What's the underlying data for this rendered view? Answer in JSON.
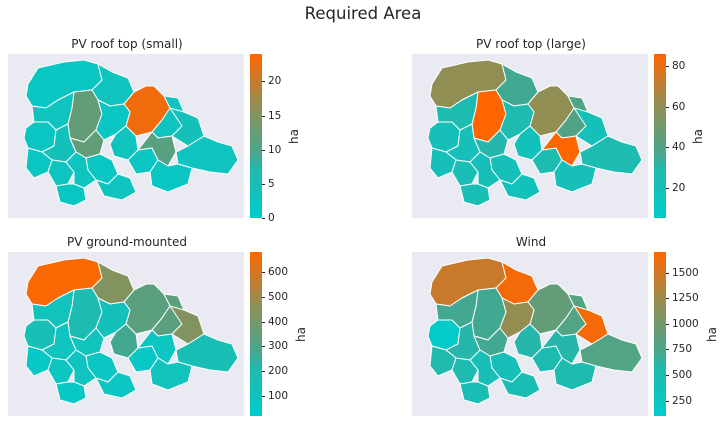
{
  "title": "Required Area",
  "colors": {
    "low": "#00cccc",
    "high": "#ff6600",
    "background": "#eaeaf2",
    "border": "#ffffff"
  },
  "panels": [
    {
      "title": "PV roof top (small)",
      "colorbar": {
        "label": "ha",
        "min": 0,
        "max": 24,
        "ticks": [
          "0",
          "5",
          "10",
          "15",
          "20"
        ],
        "tick_values": [
          0,
          5,
          10,
          15,
          20
        ]
      },
      "region_values": [
        2,
        3,
        23,
        12,
        2,
        3,
        4,
        2,
        3,
        12,
        2,
        3,
        4,
        3,
        2,
        3,
        2,
        2,
        3,
        11,
        3,
        2
      ]
    },
    {
      "title": "PV roof top (large)",
      "colorbar": {
        "label": "ha",
        "min": 5,
        "max": 86,
        "ticks": [
          "20",
          "40",
          "60",
          "80"
        ],
        "tick_values": [
          20,
          40,
          60,
          80
        ]
      },
      "region_values": [
        60,
        35,
        60,
        86,
        20,
        25,
        20,
        20,
        22,
        30,
        25,
        40,
        20,
        18,
        20,
        20,
        22,
        25,
        18,
        86,
        25,
        20
      ]
    },
    {
      "title": "PV ground-mounted",
      "colorbar": {
        "label": "ha",
        "min": 20,
        "max": 680,
        "ticks": [
          "100",
          "200",
          "300",
          "400",
          "500",
          "600"
        ],
        "tick_values": [
          100,
          200,
          300,
          400,
          500,
          600
        ]
      },
      "region_values": [
        670,
        430,
        330,
        180,
        150,
        120,
        100,
        60,
        90,
        110,
        130,
        330,
        430,
        270,
        80,
        100,
        60,
        60,
        80,
        90,
        160,
        120
      ]
    },
    {
      "title": "Wind",
      "colorbar": {
        "label": "ha",
        "min": 100,
        "max": 1700,
        "ticks": [
          "250",
          "500",
          "750",
          "1000",
          "1250",
          "1500"
        ],
        "tick_values": [
          250,
          500,
          750,
          1000,
          1250,
          1500
        ]
      },
      "region_values": [
        1450,
        1650,
        900,
        700,
        150,
        700,
        600,
        550,
        500,
        700,
        1200,
        800,
        1650,
        600,
        400,
        400,
        450,
        500,
        450,
        600,
        800,
        500
      ]
    }
  ]
}
